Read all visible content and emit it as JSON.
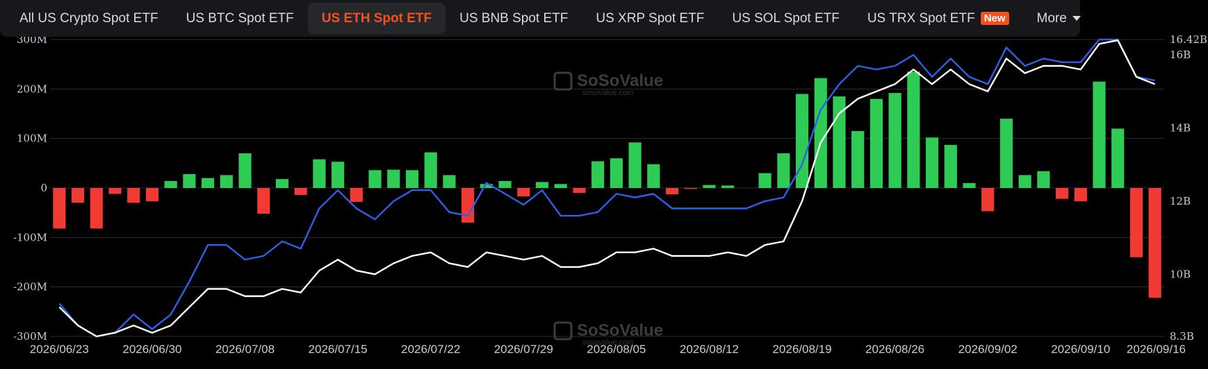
{
  "tabs": [
    {
      "label": "All US Crypto Spot ETF"
    },
    {
      "label": "US BTC Spot ETF"
    },
    {
      "label": "US ETH Spot ETF",
      "active": true
    },
    {
      "label": "US BNB Spot ETF"
    },
    {
      "label": "US XRP Spot ETF"
    },
    {
      "label": "US SOL Spot ETF"
    },
    {
      "label": "US TRX Spot ETF",
      "badge": "New"
    },
    {
      "label": "More"
    }
  ],
  "watermark": {
    "brand": "SoSoValue",
    "url": "sosovalue.com"
  },
  "colors": {
    "positive": "#2ecc55",
    "negative": "#f23a35",
    "blue_line": "#2f5fe8",
    "white_line": "#ffffff",
    "accent": "#f4511e"
  },
  "chart_data": {
    "type": "bar",
    "left_axis": {
      "ticks": [
        "300M",
        "200M",
        "100M",
        "0",
        "-100M",
        "-200M",
        "-300M"
      ],
      "ylim": [
        -300,
        300
      ],
      "unit": "M"
    },
    "right_axis": {
      "ticks": [
        "16.42B",
        "16B",
        "14B",
        "12B",
        "10B",
        "8.3B"
      ],
      "ylim": [
        8.3,
        16.42
      ],
      "unit": "B"
    },
    "x_tick_labels": [
      "2026/06/23",
      "2026/06/30",
      "2026/07/08",
      "2026/07/15",
      "2026/07/22",
      "2026/07/29",
      "2026/08/05",
      "2026/08/12",
      "2026/08/19",
      "2026/08/26",
      "2026/09/02",
      "2026/09/10",
      "2026/09/16"
    ],
    "x_tick_index": [
      0,
      5,
      10,
      15,
      20,
      25,
      30,
      35,
      40,
      45,
      50,
      55,
      60
    ],
    "flows": [
      -82,
      -30,
      -82,
      -12,
      -30,
      -27,
      14,
      28,
      20,
      26,
      70,
      -52,
      18,
      -14,
      58,
      53,
      -28,
      36,
      37,
      36,
      72,
      26,
      -70,
      8,
      14,
      -17,
      12,
      8,
      -10,
      54,
      60,
      92,
      48,
      -13,
      -2,
      6,
      5,
      0,
      30,
      70,
      190,
      222,
      185,
      115,
      180,
      192,
      235,
      102,
      87,
      10,
      -47,
      140,
      26,
      34,
      -22,
      -27,
      215,
      120,
      -140,
      -222
    ],
    "series": [
      {
        "values": [
          9.2,
          8.6,
          8.3,
          8.4,
          8.9,
          8.5,
          8.9,
          9.8,
          10.8,
          10.8,
          10.4,
          10.5,
          10.9,
          10.7,
          11.8,
          12.3,
          11.8,
          11.5,
          12.0,
          12.3,
          12.3,
          11.7,
          11.6,
          12.5,
          12.2,
          11.9,
          12.3,
          11.6,
          11.6,
          11.7,
          12.2,
          12.1,
          12.2,
          11.8,
          11.8,
          11.8,
          11.8,
          11.8,
          12.0,
          12.1,
          13.0,
          14.5,
          15.2,
          15.7,
          15.6,
          15.7,
          16.0,
          15.4,
          15.9,
          15.4,
          15.2,
          16.2,
          15.7,
          15.9,
          15.8,
          15.8,
          16.42,
          16.42,
          15.4,
          15.3
        ]
      },
      {
        "values": [
          9.1,
          8.6,
          8.3,
          8.4,
          8.6,
          8.4,
          8.6,
          9.1,
          9.6,
          9.6,
          9.4,
          9.4,
          9.6,
          9.5,
          10.1,
          10.4,
          10.1,
          10.0,
          10.3,
          10.5,
          10.6,
          10.3,
          10.2,
          10.6,
          10.5,
          10.4,
          10.5,
          10.2,
          10.2,
          10.3,
          10.6,
          10.6,
          10.7,
          10.5,
          10.5,
          10.5,
          10.6,
          10.5,
          10.8,
          10.9,
          12.0,
          13.6,
          14.4,
          14.8,
          15.0,
          15.2,
          15.6,
          15.2,
          15.6,
          15.2,
          15.0,
          15.9,
          15.5,
          15.7,
          15.7,
          15.6,
          16.3,
          16.4,
          15.4,
          15.2
        ]
      }
    ]
  }
}
